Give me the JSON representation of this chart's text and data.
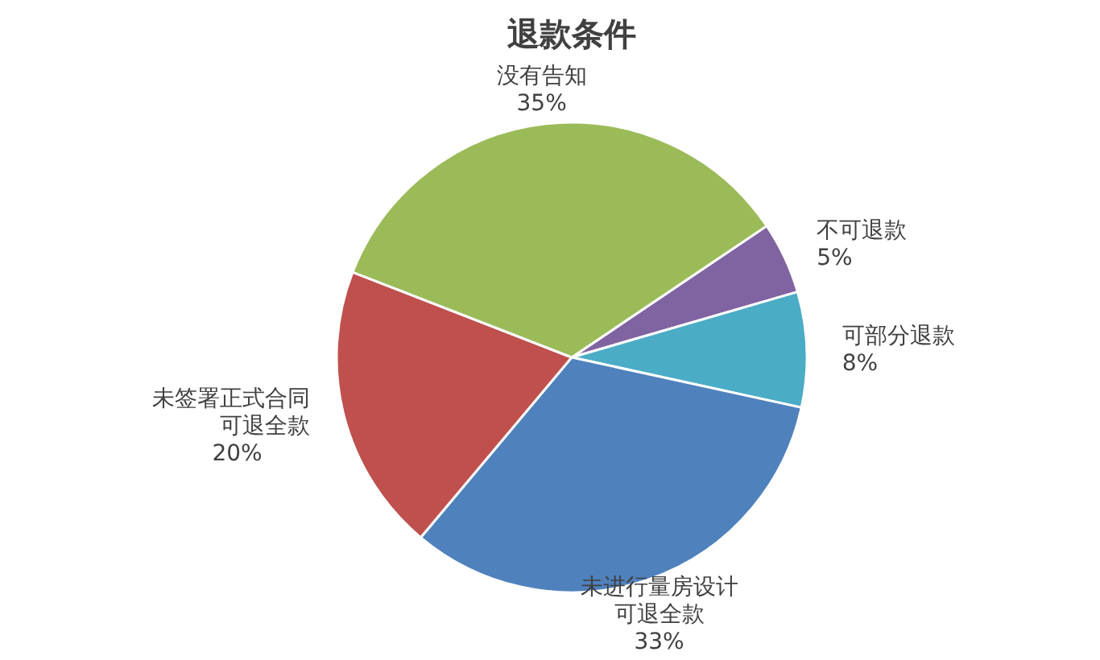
{
  "chart_data": {
    "type": "pie",
    "title": "退款条件",
    "categories": [
      "不可退款",
      "可部分退款",
      "未进行量房设计可退全款",
      "未签署正式合同可退全款",
      "没有告知"
    ],
    "values": [
      5,
      8,
      33,
      20,
      35
    ],
    "colors": [
      "#8064a2",
      "#4bacc6",
      "#4f81bd",
      "#c0504d",
      "#9bbb59"
    ],
    "value_labels": [
      "5%",
      "8%",
      "33%",
      "20%",
      "35%"
    ]
  }
}
